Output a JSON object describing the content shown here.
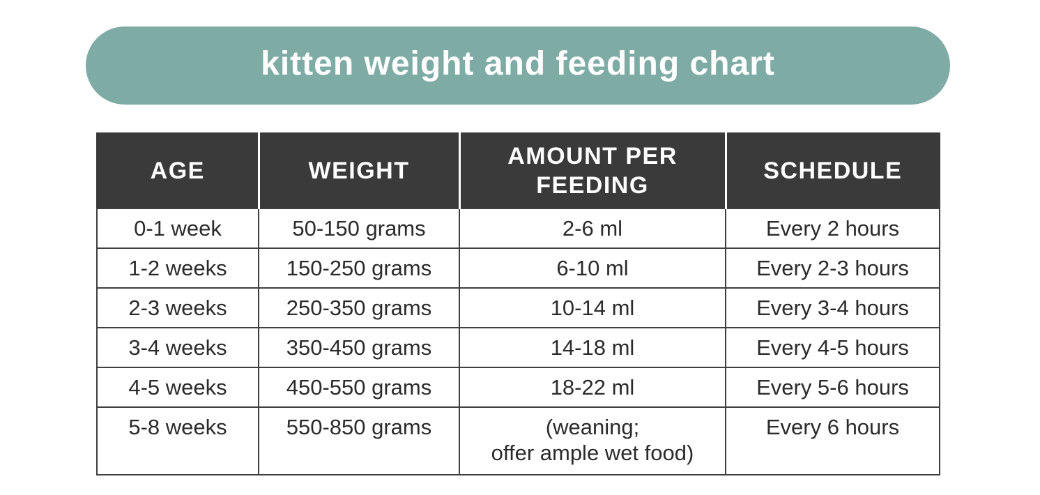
{
  "title_pill": {
    "label": "kitten weight and feeding chart"
  },
  "theme": {
    "pill_bg": "#7EACA5",
    "header_bg": "#3A3A3A",
    "header_text": "#FFFFFF",
    "body_text": "#2B2B2B",
    "border": "#3F3F3F",
    "page_bg": "#FFFFFF"
  },
  "chart_data": {
    "type": "table",
    "title": "kitten weight and feeding chart",
    "columns": [
      "AGE",
      "WEIGHT",
      "AMOUNT PER FEEDING",
      "SCHEDULE"
    ],
    "rows": [
      [
        "0-1 week",
        "50-150 grams",
        "2-6 ml",
        "Every 2 hours"
      ],
      [
        "1-2 weeks",
        "150-250 grams",
        "6-10 ml",
        "Every 2-3 hours"
      ],
      [
        "2-3 weeks",
        "250-350 grams",
        "10-14 ml",
        "Every 3-4 hours"
      ],
      [
        "3-4 weeks",
        "350-450 grams",
        "14-18 ml",
        "Every 4-5 hours"
      ],
      [
        "4-5 weeks",
        "450-550 grams",
        "18-22 ml",
        "Every 5-6 hours"
      ],
      [
        "5-8 weeks",
        "550-850 grams",
        "(weaning;\noffer ample wet food)",
        "Every 6 hours"
      ]
    ]
  }
}
